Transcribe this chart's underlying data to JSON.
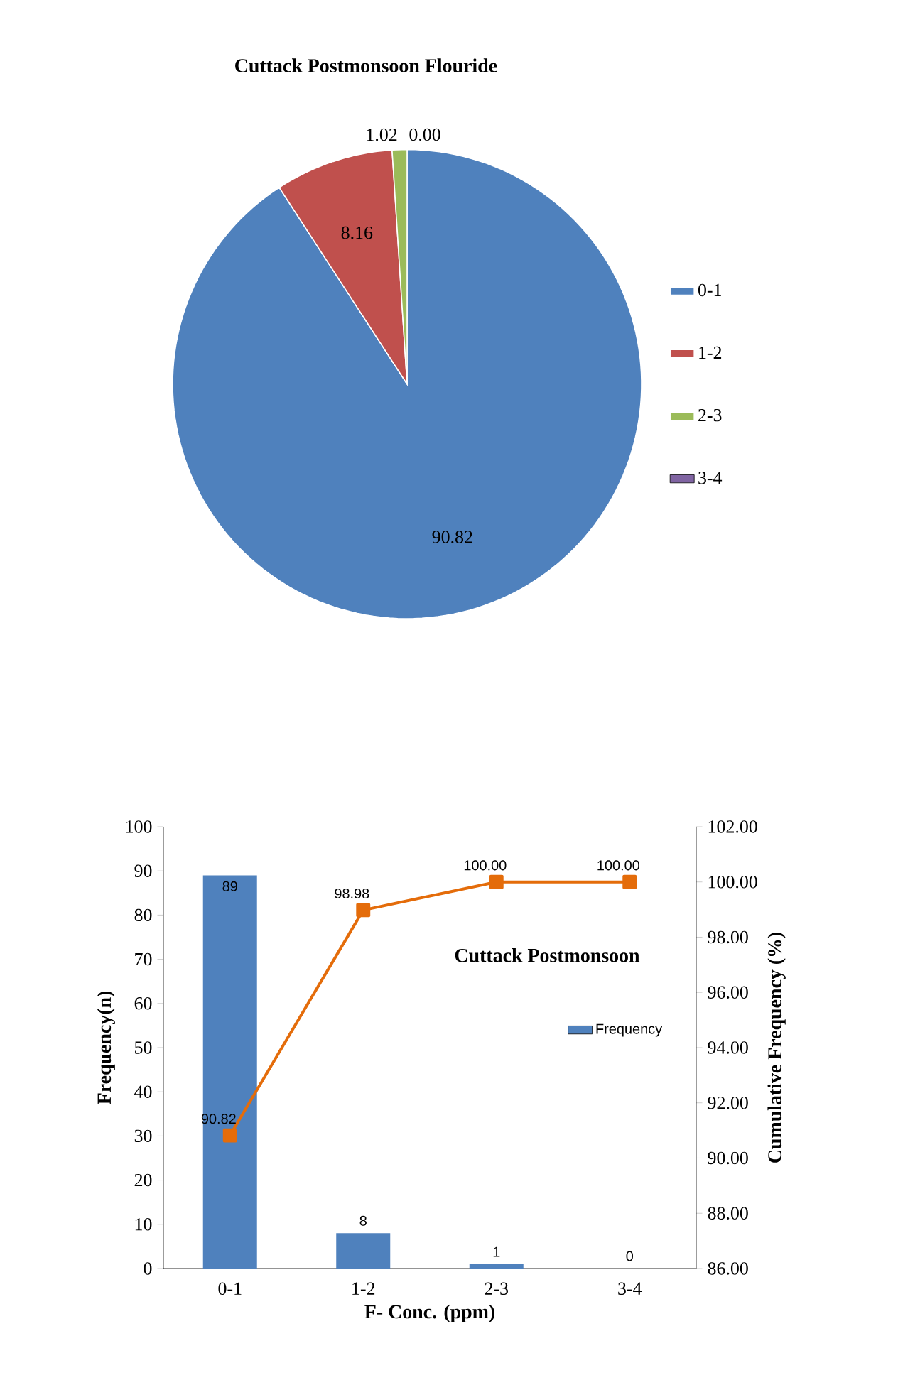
{
  "chart_data": [
    {
      "type": "pie",
      "title": "Cuttack Postmonsoon  Flouride",
      "categories": [
        "0-1",
        "1-2",
        "2-3",
        "3-4"
      ],
      "values": [
        90.82,
        8.16,
        1.02,
        0.0
      ],
      "value_labels": [
        "90.82",
        "8.16",
        "1.02",
        "0.00"
      ],
      "colors": [
        "#4f81bd",
        "#c0504d",
        "#9bbb59",
        "#8064a2"
      ],
      "legend": "right"
    },
    {
      "type": "bar",
      "title": "Cuttack Postmonsoon",
      "xlabel": "F- Conc. (ppm)",
      "ylabel": "Frequency(n)",
      "y2label": "Cumulative Frequency (%)",
      "categories": [
        "0-1",
        "1-2",
        "2-3",
        "3-4"
      ],
      "series": [
        {
          "name": "Frequency",
          "color": "#4f81bd",
          "values": [
            89,
            8,
            1,
            0
          ],
          "value_labels": [
            "89",
            "8",
            "1",
            "0"
          ]
        },
        {
          "type": "line",
          "axis": "y2",
          "color": "#e46c0a",
          "marker": "square",
          "values": [
            90.82,
            98.98,
            100.0,
            100.0
          ],
          "value_labels": [
            "90.82",
            "98.98",
            "100.00",
            "100.00"
          ]
        }
      ],
      "ylim": [
        0,
        100
      ],
      "yticks": [
        0,
        10,
        20,
        30,
        40,
        50,
        60,
        70,
        80,
        90,
        100
      ],
      "y2lim": [
        86,
        102
      ],
      "y2ticks": [
        {
          "value": 86,
          "label": "86.00"
        },
        {
          "value": 88,
          "label": "88.00"
        },
        {
          "value": 90,
          "label": "90.00"
        },
        {
          "value": 92,
          "label": "92.00"
        },
        {
          "value": 94,
          "label": "94.00"
        },
        {
          "value": 96,
          "label": "96.00"
        },
        {
          "value": 98,
          "label": "98.00"
        },
        {
          "value": 100,
          "label": "100.00"
        },
        {
          "value": 102,
          "label": "102.00"
        }
      ],
      "legend": "right"
    }
  ]
}
